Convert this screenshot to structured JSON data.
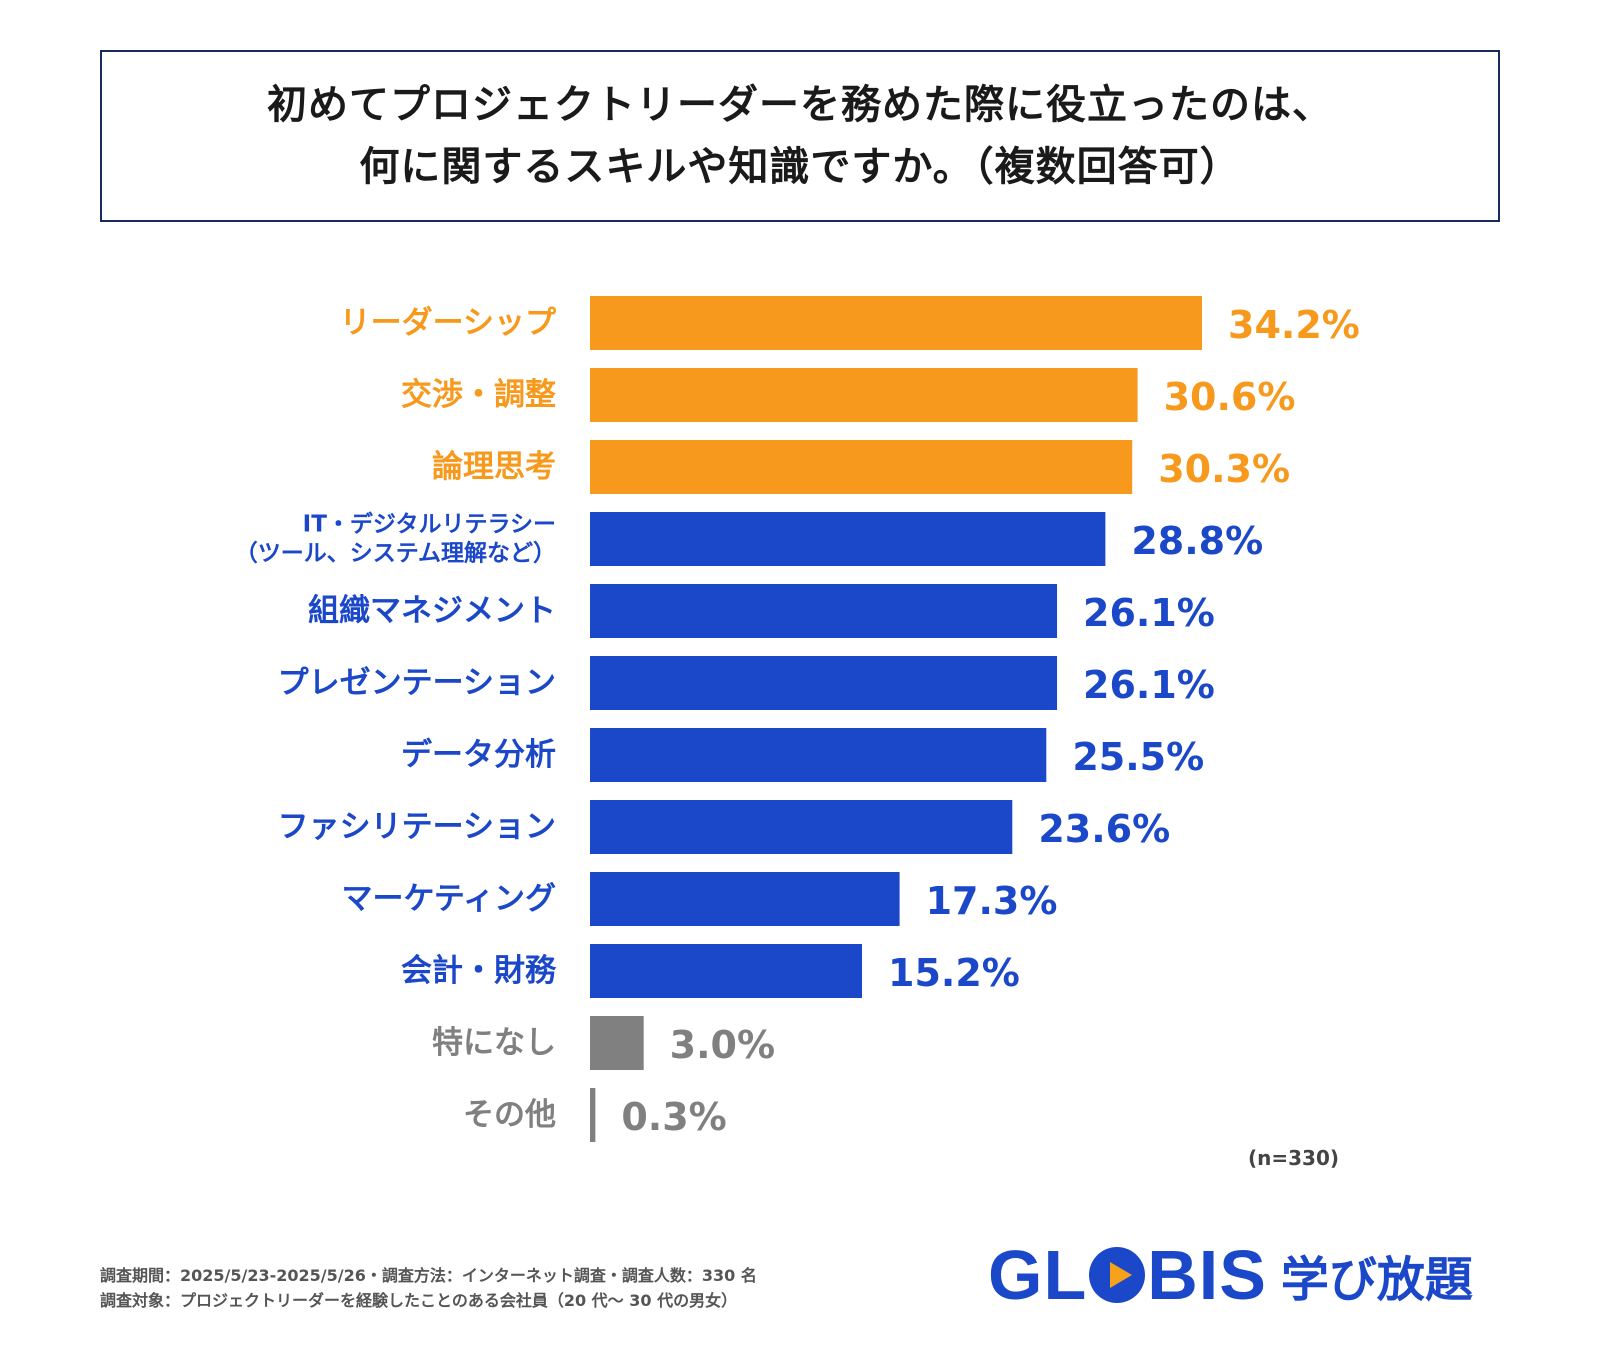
{
  "header": {
    "title_line1": "初めてプロジェクトリーダーを務めた際に役立ったのは、",
    "title_line2": "何に関するスキルや知識ですか。（複数回答可）"
  },
  "chart_data": {
    "type": "bar",
    "orientation": "horizontal",
    "title": "初めてプロジェクトリーダーを務めた際に役立ったのは、何に関するスキルや知識ですか。（複数回答可）",
    "categories": [
      [
        "リーダーシップ"
      ],
      [
        "交渉・調整"
      ],
      [
        "論理思考"
      ],
      [
        "IT・デジタルリテラシー",
        "（ツール、システム理解など）"
      ],
      [
        "組織マネジメント"
      ],
      [
        "プレゼンテーション"
      ],
      [
        "データ分析"
      ],
      [
        "ファシリテーション"
      ],
      [
        "マーケティング"
      ],
      [
        "会計・財務"
      ],
      [
        "特になし"
      ],
      [
        "その他"
      ]
    ],
    "values": [
      34.2,
      30.6,
      30.3,
      28.8,
      26.1,
      26.1,
      25.5,
      23.6,
      17.3,
      15.2,
      3.0,
      0.3
    ],
    "value_labels": [
      "34.2%",
      "30.6%",
      "30.3%",
      "28.8%",
      "26.1%",
      "26.1%",
      "25.5%",
      "23.6%",
      "17.3%",
      "15.2%",
      "3.0%",
      "0.3%"
    ],
    "groups": [
      "top",
      "top",
      "top",
      "main",
      "main",
      "main",
      "main",
      "main",
      "main",
      "main",
      "other",
      "other"
    ],
    "colors": {
      "top": "#f7991c",
      "main": "#1b47c9",
      "other": "#808080"
    },
    "xlim": [
      0,
      34.2
    ],
    "unit": "%"
  },
  "sample_note": "(n=330)",
  "footer": {
    "line1": "調査期間：2025/5/23-2025/5/26・調査方法：インターネット調査・調査人数：330 名",
    "line2": "調査対象：プロジェクトリーダーを経験したことのある会社員（20 代〜 30 代の男女）"
  },
  "logo": {
    "brand_pre": "GL",
    "brand_post": "BIS",
    "service": "学び放題"
  }
}
